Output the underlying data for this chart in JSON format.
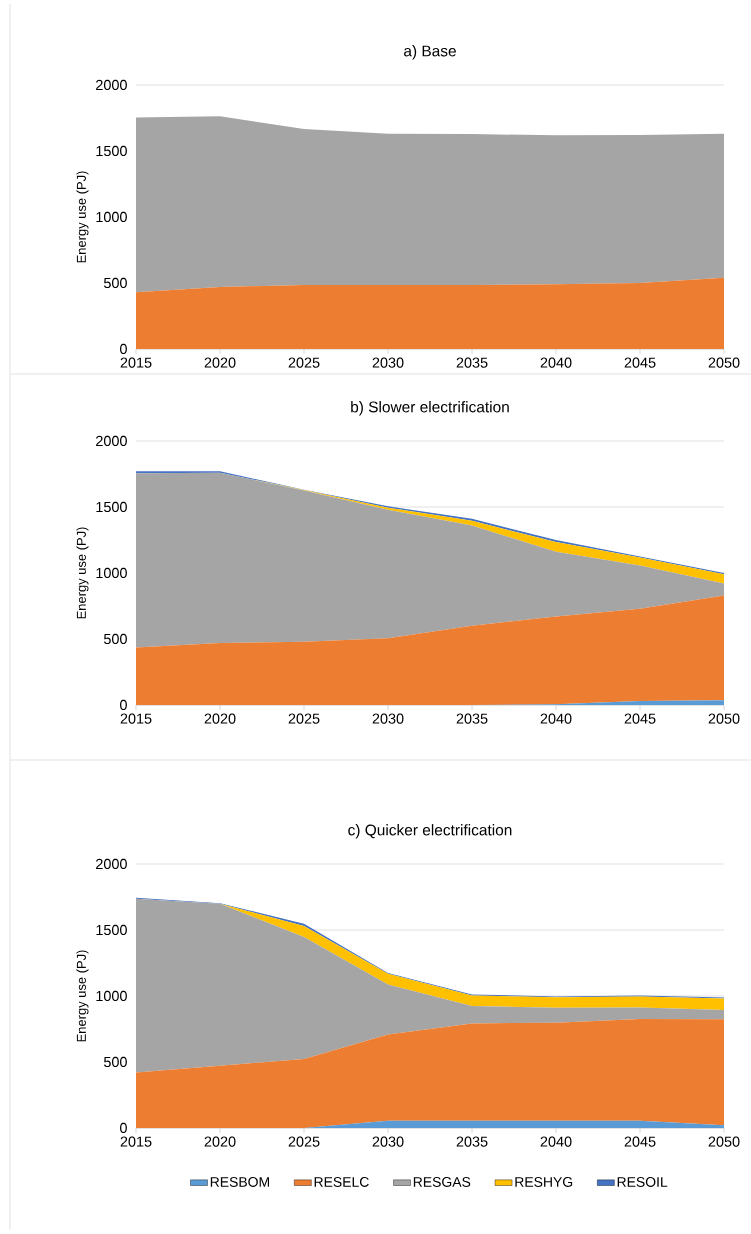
{
  "chart_data": [
    {
      "type": "area",
      "stacked": true,
      "title": "a) Base",
      "ylabel": "Energy use (PJ)",
      "x": [
        2015,
        2020,
        2025,
        2030,
        2035,
        2040,
        2045,
        2050
      ],
      "xlim": [
        2015,
        2050
      ],
      "xticks": [
        2015,
        2020,
        2025,
        2030,
        2035,
        2040,
        2045,
        2050
      ],
      "ylim": [
        0,
        2000
      ],
      "yticks": [
        0,
        500,
        1000,
        1500,
        2000
      ],
      "grid": "y",
      "legend": false,
      "series": [
        {
          "color": "#ed7d31",
          "values": [
            430,
            470,
            485,
            485,
            485,
            490,
            500,
            540
          ]
        },
        {
          "color": "#a5a5a5",
          "values": [
            1323,
            1293,
            1181,
            1146,
            1143,
            1129,
            1122,
            1091
          ]
        }
      ]
    },
    {
      "type": "area",
      "stacked": true,
      "title": "b) Slower electrification",
      "ylabel": "Energy use (PJ)",
      "x": [
        2015,
        2020,
        2025,
        2030,
        2035,
        2040,
        2045,
        2050
      ],
      "xlim": [
        2015,
        2050
      ],
      "xticks": [
        2015,
        2020,
        2025,
        2030,
        2035,
        2040,
        2045,
        2050
      ],
      "ylim": [
        0,
        2000
      ],
      "yticks": [
        0,
        500,
        1000,
        1500,
        2000
      ],
      "grid": "y",
      "legend": false,
      "series": [
        {
          "color": "#5b9bd5",
          "values": [
            0,
            0,
            0,
            0,
            0,
            5,
            30,
            35
          ]
        },
        {
          "color": "#ed7d31",
          "values": [
            435,
            470,
            480,
            505,
            600,
            665,
            700,
            795
          ]
        },
        {
          "color": "#a5a5a5",
          "values": [
            1320,
            1290,
            1145,
            975,
            760,
            490,
            326,
            90
          ]
        },
        {
          "color": "#ffc000",
          "values": [
            0,
            0,
            3,
            15,
            35,
            75,
            62,
            70
          ]
        },
        {
          "color": "#4472c4",
          "values": [
            15,
            10,
            2,
            10,
            15,
            15,
            7,
            10
          ]
        }
      ]
    },
    {
      "type": "area",
      "stacked": true,
      "title": "c) Quicker electrification",
      "ylabel": "Energy use (PJ)",
      "x": [
        2015,
        2020,
        2025,
        2030,
        2035,
        2040,
        2045,
        2050
      ],
      "xlim": [
        2015,
        2050
      ],
      "xticks": [
        2015,
        2020,
        2025,
        2030,
        2035,
        2040,
        2045,
        2050
      ],
      "ylim": [
        0,
        2000
      ],
      "yticks": [
        0,
        500,
        1000,
        1500,
        2000
      ],
      "grid": "y",
      "legend": "bottom",
      "series": [
        {
          "name": "RESBOM",
          "color": "#5b9bd5",
          "values": [
            0,
            0,
            0,
            55,
            55,
            55,
            55,
            20
          ]
        },
        {
          "name": "RESELC",
          "color": "#ed7d31",
          "values": [
            420,
            472,
            522,
            653,
            737,
            743,
            771,
            803
          ]
        },
        {
          "name": "RESGAS",
          "color": "#a5a5a5",
          "values": [
            1316,
            1227,
            925,
            379,
            133,
            112,
            87,
            71
          ]
        },
        {
          "name": "RESHYG",
          "color": "#ffc000",
          "values": [
            0,
            0,
            84,
            81,
            78,
            81,
            84,
            87
          ]
        },
        {
          "name": "RESOIL",
          "color": "#4472c4",
          "values": [
            9,
            4,
            16,
            6,
            9,
            6,
            6,
            7
          ]
        }
      ]
    }
  ]
}
